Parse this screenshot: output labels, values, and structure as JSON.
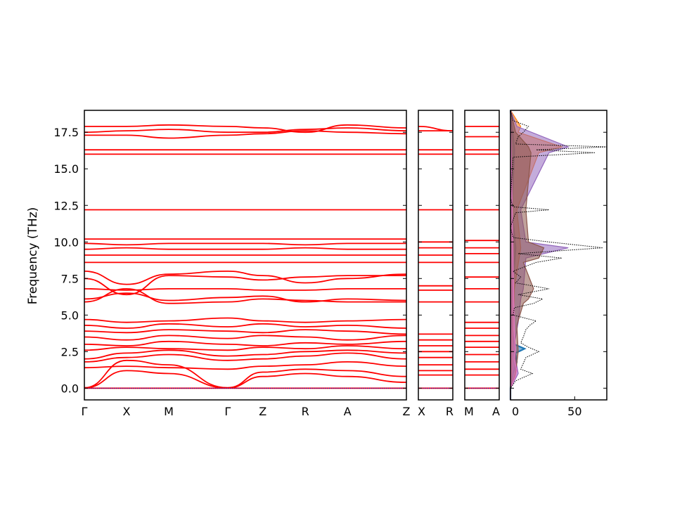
{
  "chart_data": {
    "type": "line",
    "title": "",
    "ylabel": "Frequency (THz)",
    "ylim": [
      -0.8,
      19.0
    ],
    "yticks": [
      "0.0",
      "2.5",
      "5.0",
      "7.5",
      "10.0",
      "12.5",
      "15.0",
      "17.5"
    ],
    "line_color": "#ff0000",
    "zero_line_color": "#0000cc",
    "panels": [
      {
        "name": "main",
        "points": [
          "Γ",
          "X",
          "M",
          "Γ",
          "Z",
          "R",
          "A",
          "Z"
        ],
        "bands": [
          [
            0.0,
            0.0,
            0.0,
            0.0,
            0.0,
            0.0,
            0.0,
            0.0
          ],
          [
            0.02,
            1.2,
            1.0,
            0.02,
            0.8,
            1.0,
            0.8,
            0.4
          ],
          [
            0.03,
            1.9,
            1.6,
            0.03,
            1.1,
            1.3,
            1.2,
            0.8
          ],
          [
            1.4,
            1.5,
            1.4,
            1.3,
            1.5,
            1.6,
            1.8,
            1.5
          ],
          [
            1.8,
            2.1,
            2.3,
            1.9,
            2.0,
            2.2,
            2.4,
            2.0
          ],
          [
            2.0,
            2.4,
            2.6,
            2.2,
            2.3,
            2.5,
            2.6,
            2.4
          ],
          [
            2.6,
            2.8,
            2.7,
            2.6,
            2.8,
            2.7,
            2.9,
            2.7
          ],
          [
            3.0,
            2.9,
            3.2,
            3.0,
            2.9,
            3.1,
            3.0,
            3.2
          ],
          [
            3.5,
            3.3,
            3.6,
            3.4,
            3.6,
            3.5,
            3.3,
            3.6
          ],
          [
            3.9,
            3.8,
            4.0,
            3.9,
            3.8,
            4.0,
            3.9,
            3.7
          ],
          [
            4.3,
            4.1,
            4.4,
            4.2,
            4.4,
            4.2,
            4.3,
            4.1
          ],
          [
            4.7,
            4.5,
            4.6,
            4.8,
            4.6,
            4.5,
            4.6,
            4.7
          ],
          [
            5.9,
            6.8,
            5.8,
            5.9,
            6.1,
            6.0,
            5.9,
            5.9
          ],
          [
            6.1,
            6.5,
            6.0,
            6.2,
            6.3,
            5.9,
            6.1,
            6.0
          ],
          [
            6.8,
            6.7,
            6.8,
            6.8,
            6.7,
            6.7,
            6.8,
            6.8
          ],
          [
            7.5,
            6.4,
            7.7,
            7.6,
            7.4,
            7.6,
            7.7,
            7.7
          ],
          [
            8.0,
            7.1,
            7.8,
            8.0,
            7.7,
            7.2,
            7.5,
            7.8
          ],
          [
            8.6,
            8.6,
            8.6,
            8.6,
            8.6,
            8.6,
            8.6,
            8.6
          ],
          [
            9.1,
            9.1,
            9.1,
            9.1,
            9.1,
            9.1,
            9.1,
            9.1
          ],
          [
            9.5,
            9.6,
            9.5,
            9.5,
            9.5,
            9.6,
            9.5,
            9.5
          ],
          [
            9.9,
            9.8,
            9.9,
            9.9,
            9.9,
            9.8,
            9.9,
            9.9
          ],
          [
            10.2,
            10.2,
            10.2,
            10.2,
            10.2,
            10.2,
            10.2,
            10.2
          ],
          [
            12.2,
            12.2,
            12.2,
            12.2,
            12.2,
            12.2,
            12.2,
            12.2
          ],
          [
            16.0,
            16.0,
            16.0,
            16.0,
            16.0,
            16.0,
            16.0,
            16.0
          ],
          [
            16.3,
            16.3,
            16.3,
            16.3,
            16.3,
            16.3,
            16.3,
            16.3
          ],
          [
            17.3,
            17.3,
            17.1,
            17.3,
            17.4,
            17.6,
            17.5,
            17.4
          ],
          [
            17.5,
            17.6,
            17.7,
            17.5,
            17.5,
            17.7,
            17.8,
            17.6
          ],
          [
            17.9,
            17.9,
            18.0,
            17.9,
            17.8,
            17.5,
            18.0,
            17.8
          ]
        ]
      },
      {
        "name": "x-r",
        "points": [
          "X",
          "R"
        ],
        "bands": [
          [
            0.0,
            0.0
          ],
          [
            0.9,
            0.9
          ],
          [
            1.2,
            1.2
          ],
          [
            1.6,
            1.6
          ],
          [
            2.1,
            2.1
          ],
          [
            2.5,
            2.5
          ],
          [
            2.9,
            2.9
          ],
          [
            3.3,
            3.3
          ],
          [
            3.7,
            3.7
          ],
          [
            5.9,
            5.9
          ],
          [
            6.7,
            6.7
          ],
          [
            7.0,
            7.0
          ],
          [
            8.6,
            8.6
          ],
          [
            9.1,
            9.1
          ],
          [
            9.6,
            9.6
          ],
          [
            10.0,
            10.0
          ],
          [
            12.2,
            12.2
          ],
          [
            16.0,
            16.0
          ],
          [
            16.3,
            16.3
          ],
          [
            17.6,
            17.6
          ],
          [
            17.9,
            17.6
          ]
        ]
      },
      {
        "name": "m-a",
        "points": [
          "M",
          "A"
        ],
        "bands": [
          [
            0.0,
            0.0
          ],
          [
            0.9,
            0.9
          ],
          [
            1.3,
            1.3
          ],
          [
            1.8,
            1.8
          ],
          [
            2.3,
            2.3
          ],
          [
            2.8,
            2.8
          ],
          [
            3.2,
            3.2
          ],
          [
            3.6,
            3.6
          ],
          [
            4.1,
            4.1
          ],
          [
            4.5,
            4.5
          ],
          [
            5.9,
            5.9
          ],
          [
            6.8,
            6.8
          ],
          [
            7.6,
            7.6
          ],
          [
            8.6,
            8.6
          ],
          [
            9.2,
            9.2
          ],
          [
            9.6,
            9.6
          ],
          [
            10.1,
            10.1
          ],
          [
            12.2,
            12.2
          ],
          [
            16.0,
            16.0
          ],
          [
            16.3,
            16.3
          ],
          [
            17.2,
            17.2
          ],
          [
            17.9,
            17.9
          ]
        ]
      }
    ],
    "dos": {
      "xlim": [
        0,
        75
      ],
      "xticks": [
        "0",
        "50"
      ],
      "total_color": "#000000",
      "total": [
        [
          -0.8,
          0
        ],
        [
          0.0,
          0
        ],
        [
          0.5,
          4
        ],
        [
          1.0,
          17
        ],
        [
          1.3,
          8
        ],
        [
          1.7,
          10
        ],
        [
          2.1,
          12
        ],
        [
          2.5,
          22
        ],
        [
          2.8,
          14
        ],
        [
          3.1,
          8
        ],
        [
          3.5,
          10
        ],
        [
          4.0,
          12
        ],
        [
          4.3,
          15
        ],
        [
          4.6,
          20
        ],
        [
          5.0,
          2
        ],
        [
          5.5,
          3
        ],
        [
          5.8,
          18
        ],
        [
          6.1,
          25
        ],
        [
          6.4,
          6
        ],
        [
          6.8,
          30
        ],
        [
          7.2,
          4
        ],
        [
          7.6,
          8
        ],
        [
          8.0,
          2
        ],
        [
          8.6,
          20
        ],
        [
          8.9,
          40
        ],
        [
          9.2,
          6
        ],
        [
          9.6,
          72
        ],
        [
          10.0,
          30
        ],
        [
          10.3,
          2
        ],
        [
          11.0,
          0
        ],
        [
          12.0,
          4
        ],
        [
          12.2,
          30
        ],
        [
          12.4,
          2
        ],
        [
          13.0,
          0
        ],
        [
          15.8,
          2
        ],
        [
          16.1,
          66
        ],
        [
          16.3,
          20
        ],
        [
          16.5,
          75
        ],
        [
          16.7,
          4
        ],
        [
          17.2,
          6
        ],
        [
          17.5,
          10
        ],
        [
          17.9,
          14
        ],
        [
          18.3,
          2
        ],
        [
          19.0,
          0
        ]
      ],
      "partials": [
        {
          "color": "#1f77b4",
          "points": [
            [
              -0.8,
              0
            ],
            [
              0.0,
              0
            ],
            [
              1.0,
              2
            ],
            [
              1.8,
              5
            ],
            [
              2.4,
              4
            ],
            [
              2.7,
              11
            ],
            [
              3.0,
              3
            ],
            [
              3.6,
              2
            ],
            [
              4.5,
              1
            ],
            [
              6.0,
              1
            ],
            [
              9.6,
              4
            ],
            [
              12.2,
              1
            ],
            [
              16.3,
              3
            ],
            [
              19.0,
              0
            ]
          ]
        },
        {
          "color": "#ff7f0e",
          "points": [
            [
              -0.8,
              0
            ],
            [
              0.0,
              0
            ],
            [
              1.0,
              1
            ],
            [
              4.5,
              2
            ],
            [
              6.0,
              3
            ],
            [
              6.8,
              3
            ],
            [
              9.6,
              8
            ],
            [
              12.2,
              5
            ],
            [
              16.1,
              22
            ],
            [
              16.5,
              40
            ],
            [
              17.5,
              6
            ],
            [
              17.9,
              8
            ],
            [
              19.0,
              0
            ]
          ]
        },
        {
          "color": "#9467bd",
          "points": [
            [
              -0.8,
              0
            ],
            [
              0.0,
              0
            ],
            [
              1.0,
              6
            ],
            [
              2.0,
              4
            ],
            [
              3.0,
              3
            ],
            [
              4.5,
              6
            ],
            [
              6.1,
              8
            ],
            [
              6.8,
              10
            ],
            [
              8.9,
              12
            ],
            [
              9.6,
              45
            ],
            [
              10.0,
              12
            ],
            [
              12.2,
              8
            ],
            [
              16.1,
              30
            ],
            [
              16.5,
              45
            ],
            [
              17.9,
              5
            ],
            [
              19.0,
              0
            ]
          ]
        },
        {
          "color": "#8c564b",
          "points": [
            [
              -0.8,
              0
            ],
            [
              0.0,
              0
            ],
            [
              1.0,
              4
            ],
            [
              2.5,
              6
            ],
            [
              4.3,
              5
            ],
            [
              5.8,
              10
            ],
            [
              6.1,
              14
            ],
            [
              6.8,
              18
            ],
            [
              8.6,
              10
            ],
            [
              8.9,
              22
            ],
            [
              9.6,
              26
            ],
            [
              10.0,
              14
            ],
            [
              12.2,
              12
            ],
            [
              16.1,
              16
            ],
            [
              16.5,
              14
            ],
            [
              17.5,
              4
            ],
            [
              19.0,
              0
            ]
          ]
        },
        {
          "color": "#e377c2",
          "points": [
            [
              -0.8,
              0
            ],
            [
              0.0,
              0
            ],
            [
              0.8,
              4
            ],
            [
              1.2,
              5
            ],
            [
              2.0,
              3
            ],
            [
              2.6,
              4
            ],
            [
              4.0,
              3
            ],
            [
              19.0,
              0
            ]
          ]
        }
      ]
    }
  }
}
